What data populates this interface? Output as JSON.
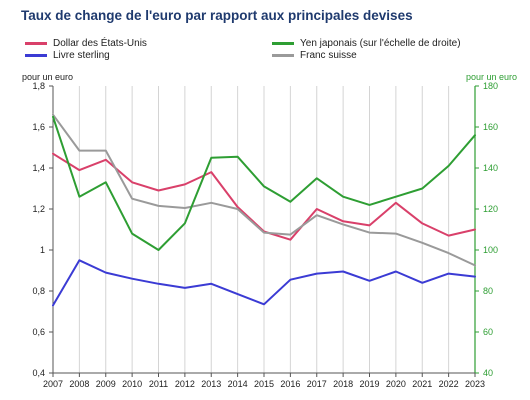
{
  "title": "Taux de change de l'euro par rapport aux principales devises",
  "legend": [
    {
      "name": "Dollar des États-Unis",
      "color": "#d9406a"
    },
    {
      "name": "Livre sterling",
      "color": "#3b3bd4"
    },
    {
      "name": "Yen japonais (sur l'échelle de droite)",
      "color": "#2e9e33"
    },
    {
      "name": "Franc suisse",
      "color": "#9a9a9a"
    }
  ],
  "left_axis_unit": "pour un euro",
  "right_axis_unit": "pour un euro",
  "chart_data": {
    "type": "line",
    "x": [
      2007,
      2008,
      2009,
      2010,
      2011,
      2012,
      2013,
      2014,
      2015,
      2016,
      2017,
      2018,
      2019,
      2020,
      2021,
      2022,
      2023
    ],
    "x_tick_labels": [
      "2007",
      "2008",
      "2009",
      "2010",
      "2011",
      "2012",
      "2013",
      "2014",
      "2015",
      "2016",
      "2017",
      "2018",
      "2019",
      "2020",
      "2021",
      "2022",
      "2023"
    ],
    "y_left": {
      "min": 0.4,
      "max": 1.8,
      "ticks": [
        0.4,
        0.6,
        0.8,
        1.0,
        1.2,
        1.4,
        1.6,
        1.8
      ],
      "tick_labels": [
        "0,4",
        "0,6",
        "0,8",
        "1",
        "1,2",
        "1,4",
        "1,6",
        "1,8"
      ]
    },
    "y_right": {
      "min": 40,
      "max": 180,
      "ticks": [
        40,
        60,
        80,
        100,
        120,
        140,
        160,
        180
      ],
      "tick_labels": [
        "40",
        "60",
        "80",
        "100",
        "120",
        "140",
        "160",
        "180"
      ]
    },
    "grid": {
      "vertical": true,
      "horizontal": false
    },
    "series": [
      {
        "name": "Dollar des États-Unis",
        "axis": "left",
        "color": "#d9406a",
        "values": [
          1.47,
          1.39,
          1.44,
          1.33,
          1.29,
          1.32,
          1.38,
          1.21,
          1.09,
          1.05,
          1.2,
          1.14,
          1.12,
          1.23,
          1.13,
          1.07,
          1.1
        ]
      },
      {
        "name": "Livre sterling",
        "axis": "left",
        "color": "#3b3bd4",
        "values": [
          0.73,
          0.95,
          0.89,
          0.86,
          0.835,
          0.815,
          0.835,
          0.785,
          0.735,
          0.855,
          0.885,
          0.895,
          0.85,
          0.895,
          0.84,
          0.885,
          0.87
        ]
      },
      {
        "name": "Franc suisse",
        "axis": "left",
        "color": "#9a9a9a",
        "values": [
          1.66,
          1.485,
          1.485,
          1.25,
          1.215,
          1.205,
          1.23,
          1.2,
          1.085,
          1.075,
          1.17,
          1.125,
          1.085,
          1.08,
          1.035,
          0.985,
          0.925
        ]
      },
      {
        "name": "Yen japonais (sur l'échelle de droite)",
        "axis": "right",
        "color": "#2e9e33",
        "values": [
          165,
          126,
          133,
          108,
          100,
          113,
          145,
          145.5,
          131,
          123.5,
          135,
          126,
          122,
          126,
          130,
          141,
          156
        ]
      }
    ]
  }
}
